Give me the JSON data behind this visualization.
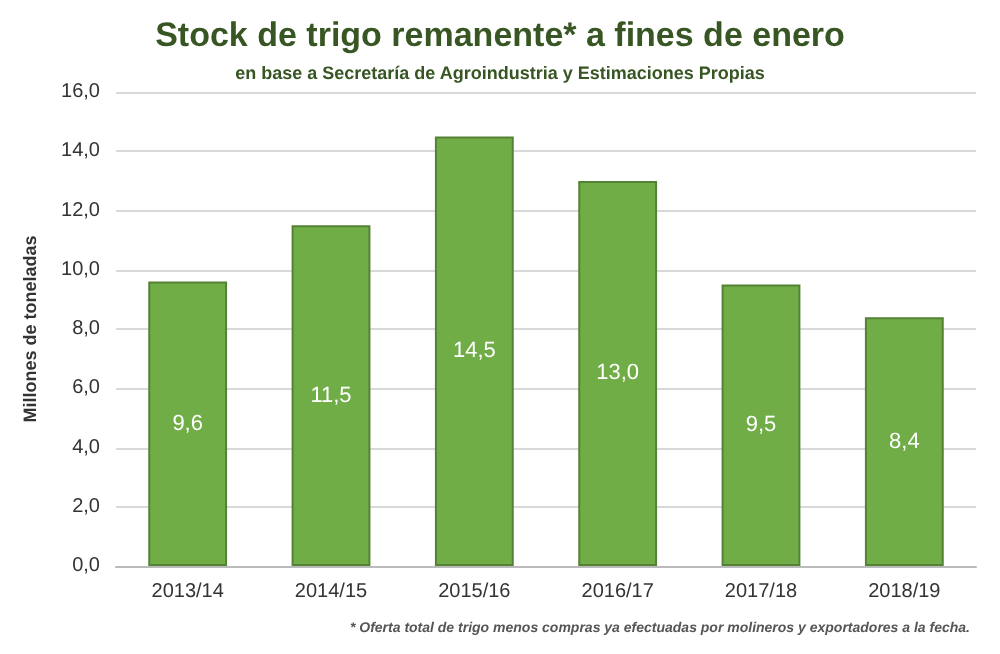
{
  "chart_data": {
    "type": "bar",
    "title": "Stock de trigo remanente* a fines de enero",
    "subtitle": "en base a Secretaría de Agroindustria y Estimaciones Propias",
    "ylabel": "Millones de toneladas",
    "categories": [
      "2013/14",
      "2014/15",
      "2015/16",
      "2016/17",
      "2017/18",
      "2018/19"
    ],
    "values": [
      9.6,
      11.5,
      14.5,
      13.0,
      9.5,
      8.4
    ],
    "value_labels": [
      "9,6",
      "11,5",
      "14,5",
      "13,0",
      "9,5",
      "8,4"
    ],
    "color": "#70ad47",
    "ylim": [
      0,
      16
    ],
    "yticks": [
      {
        "value": 0,
        "label": "0,0"
      },
      {
        "value": 2,
        "label": "2,0"
      },
      {
        "value": 4,
        "label": "4,0"
      },
      {
        "value": 6,
        "label": "6,0"
      },
      {
        "value": 8,
        "label": "8,0"
      },
      {
        "value": 10,
        "label": "10,0"
      },
      {
        "value": 12,
        "label": "12,0"
      },
      {
        "value": 14,
        "label": "14,0"
      },
      {
        "value": 16,
        "label": "16,0"
      }
    ],
    "grid": "y",
    "annotations": [
      "* Oferta total de trigo menos compras ya efectuadas por molineros y exportadores a la fecha."
    ]
  }
}
